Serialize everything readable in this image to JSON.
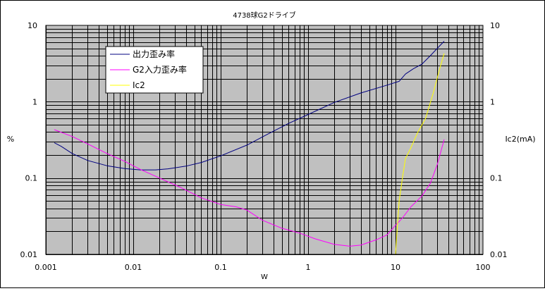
{
  "chart_data": {
    "type": "line",
    "title": "4738球G2ドライブ",
    "xlabel": "W",
    "ylabel": "%",
    "y2label": "Ic2(mA)",
    "x_scale": "log",
    "y_scale": "log",
    "y2_scale": "log",
    "xlim": [
      0.001,
      100
    ],
    "ylim": [
      0.01,
      10
    ],
    "y2lim": [
      0.01,
      10
    ],
    "x_ticks": [
      "0.001",
      "0.01",
      "0.1",
      "1",
      "10",
      "100"
    ],
    "y_ticks": [
      "0.01",
      "0.1",
      "1",
      "10"
    ],
    "y2_ticks": [
      "0.01",
      "0.1",
      "1",
      "10"
    ],
    "grid": true,
    "legend_position": "top-left",
    "plot_background": "#c0c0c0",
    "series": [
      {
        "name": "出力歪み率",
        "color": "#000080",
        "axis": "left",
        "x": [
          0.00125,
          0.0015,
          0.002,
          0.003,
          0.005,
          0.008,
          0.012,
          0.018,
          0.025,
          0.04,
          0.06,
          0.1,
          0.2,
          0.35,
          0.6,
          1,
          2,
          4,
          8,
          11,
          13,
          16,
          20,
          25,
          30,
          36
        ],
        "y": [
          0.29,
          0.26,
          0.21,
          0.17,
          0.145,
          0.133,
          0.128,
          0.128,
          0.132,
          0.143,
          0.16,
          0.195,
          0.27,
          0.38,
          0.52,
          0.68,
          0.98,
          1.3,
          1.65,
          1.85,
          2.3,
          2.7,
          3.1,
          4.0,
          5.0,
          6.2
        ]
      },
      {
        "name": "G2入力歪み率",
        "color": "#ff00ff",
        "axis": "left",
        "x": [
          0.00125,
          0.002,
          0.003,
          0.005,
          0.008,
          0.012,
          0.02,
          0.035,
          0.06,
          0.1,
          0.15,
          0.2,
          0.3,
          0.5,
          0.8,
          1.2,
          2,
          3,
          4,
          6,
          8,
          10,
          12,
          15,
          20,
          25,
          30,
          36
        ],
        "y": [
          0.43,
          0.35,
          0.28,
          0.21,
          0.165,
          0.13,
          0.1,
          0.075,
          0.055,
          0.045,
          0.042,
          0.038,
          0.028,
          0.022,
          0.019,
          0.016,
          0.0135,
          0.0128,
          0.0132,
          0.0155,
          0.018,
          0.024,
          0.03,
          0.042,
          0.058,
          0.085,
          0.15,
          0.32
        ]
      },
      {
        "name": "Ic2",
        "color": "#ffff00",
        "axis": "right",
        "x": [
          0.00125,
          0.01,
          0.1,
          1,
          8,
          10,
          11,
          12,
          13,
          15,
          18,
          22,
          27,
          32,
          36
        ],
        "y": [
          0.01,
          0.01,
          0.01,
          0.01,
          0.01,
          0.01,
          0.05,
          0.1,
          0.18,
          0.25,
          0.4,
          0.6,
          1.3,
          2.7,
          4.3
        ]
      }
    ]
  }
}
